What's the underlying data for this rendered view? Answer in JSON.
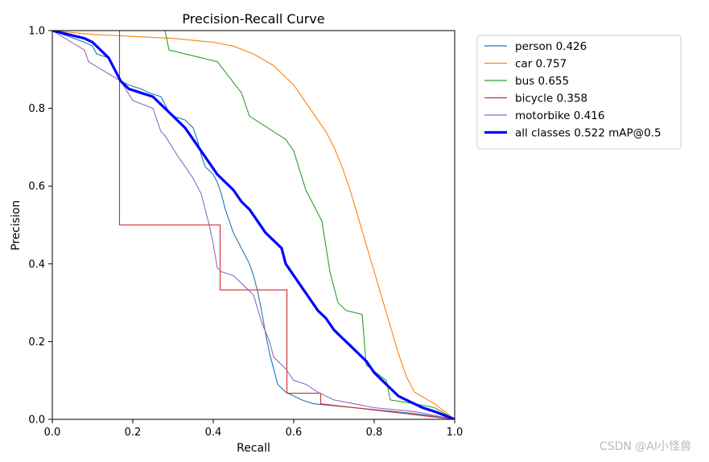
{
  "chart_data": {
    "type": "line",
    "title": "Precision-Recall Curve",
    "xlabel": "Recall",
    "ylabel": "Precision",
    "xlim": [
      0.0,
      1.0
    ],
    "ylim": [
      0.0,
      1.0
    ],
    "xticks": [
      "0.0",
      "0.2",
      "0.4",
      "0.6",
      "0.8",
      "1.0"
    ],
    "yticks": [
      "0.0",
      "0.2",
      "0.4",
      "0.6",
      "0.8",
      "1.0"
    ],
    "grid": false,
    "legend_position": "outside-right-top",
    "series": [
      {
        "name": "person 0.426",
        "color": "#1f77b4",
        "bold": false,
        "x": [
          0.0,
          0.08,
          0.1,
          0.11,
          0.14,
          0.17,
          0.19,
          0.22,
          0.24,
          0.27,
          0.28,
          0.29,
          0.3,
          0.33,
          0.35,
          0.36,
          0.37,
          0.38,
          0.4,
          0.41,
          0.42,
          0.43,
          0.44,
          0.45,
          0.46,
          0.47,
          0.48,
          0.49,
          0.5,
          0.51,
          0.52,
          0.53,
          0.54,
          0.55,
          0.56,
          0.58,
          0.6,
          0.62,
          0.65,
          0.7,
          0.75,
          0.8,
          0.85,
          0.9,
          1.0
        ],
        "y": [
          1.0,
          0.97,
          0.96,
          0.94,
          0.93,
          0.87,
          0.86,
          0.85,
          0.84,
          0.83,
          0.81,
          0.79,
          0.78,
          0.77,
          0.75,
          0.72,
          0.68,
          0.65,
          0.63,
          0.61,
          0.58,
          0.54,
          0.51,
          0.48,
          0.46,
          0.44,
          0.42,
          0.4,
          0.37,
          0.33,
          0.28,
          0.22,
          0.17,
          0.13,
          0.09,
          0.07,
          0.06,
          0.05,
          0.04,
          0.035,
          0.03,
          0.025,
          0.02,
          0.015,
          0.0
        ]
      },
      {
        "name": "car 0.757",
        "color": "#ff7f0e",
        "bold": false,
        "x": [
          0.0,
          0.1,
          0.2,
          0.3,
          0.4,
          0.45,
          0.5,
          0.55,
          0.58,
          0.6,
          0.62,
          0.64,
          0.66,
          0.68,
          0.7,
          0.72,
          0.74,
          0.76,
          0.78,
          0.8,
          0.82,
          0.84,
          0.86,
          0.88,
          0.9,
          0.95,
          1.0
        ],
        "y": [
          1.0,
          0.99,
          0.985,
          0.98,
          0.97,
          0.96,
          0.94,
          0.91,
          0.88,
          0.86,
          0.83,
          0.8,
          0.77,
          0.74,
          0.7,
          0.65,
          0.59,
          0.52,
          0.45,
          0.38,
          0.31,
          0.24,
          0.17,
          0.11,
          0.07,
          0.04,
          0.0
        ]
      },
      {
        "name": "bus 0.655",
        "color": "#2ca02c",
        "bold": false,
        "x": [
          0.0,
          0.28,
          0.29,
          0.41,
          0.47,
          0.49,
          0.58,
          0.6,
          0.63,
          0.67,
          0.69,
          0.71,
          0.72,
          0.73,
          0.77,
          0.78,
          0.83,
          0.84,
          0.9,
          0.95,
          1.0
        ],
        "y": [
          1.0,
          1.0,
          0.95,
          0.92,
          0.84,
          0.78,
          0.72,
          0.69,
          0.59,
          0.51,
          0.38,
          0.3,
          0.29,
          0.28,
          0.27,
          0.14,
          0.1,
          0.05,
          0.04,
          0.03,
          0.0
        ]
      },
      {
        "name": "bicycle 0.358",
        "color": "#d62728",
        "bold": false,
        "x": [
          0.0,
          0.167,
          0.167,
          0.417,
          0.417,
          0.583,
          0.583,
          0.667,
          0.667,
          1.0
        ],
        "y": [
          1.0,
          1.0,
          0.5,
          0.5,
          0.333,
          0.333,
          0.067,
          0.067,
          0.04,
          0.0
        ]
      },
      {
        "name": "motorbike 0.416",
        "color": "#9467bd",
        "bold": false,
        "x": [
          0.0,
          0.08,
          0.09,
          0.17,
          0.2,
          0.25,
          0.27,
          0.28,
          0.31,
          0.33,
          0.35,
          0.37,
          0.39,
          0.4,
          0.41,
          0.42,
          0.45,
          0.48,
          0.5,
          0.52,
          0.54,
          0.55,
          0.58,
          0.6,
          0.63,
          0.66,
          0.7,
          0.75,
          0.8,
          0.9,
          1.0
        ],
        "y": [
          1.0,
          0.95,
          0.92,
          0.87,
          0.82,
          0.8,
          0.74,
          0.73,
          0.68,
          0.65,
          0.62,
          0.58,
          0.5,
          0.45,
          0.39,
          0.38,
          0.37,
          0.34,
          0.32,
          0.25,
          0.2,
          0.16,
          0.13,
          0.1,
          0.09,
          0.07,
          0.05,
          0.04,
          0.03,
          0.02,
          0.0
        ]
      },
      {
        "name": "all classes 0.522 mAP@0.5",
        "color": "#0000ff",
        "bold": true,
        "x": [
          0.0,
          0.08,
          0.1,
          0.14,
          0.17,
          0.19,
          0.22,
          0.25,
          0.27,
          0.29,
          0.31,
          0.33,
          0.35,
          0.37,
          0.39,
          0.41,
          0.43,
          0.45,
          0.47,
          0.49,
          0.51,
          0.53,
          0.55,
          0.57,
          0.58,
          0.6,
          0.62,
          0.64,
          0.66,
          0.68,
          0.7,
          0.72,
          0.74,
          0.76,
          0.78,
          0.8,
          0.82,
          0.84,
          0.86,
          0.88,
          0.9,
          0.92,
          0.95,
          1.0
        ],
        "y": [
          1.0,
          0.98,
          0.97,
          0.93,
          0.87,
          0.85,
          0.84,
          0.83,
          0.81,
          0.79,
          0.77,
          0.75,
          0.72,
          0.69,
          0.66,
          0.63,
          0.61,
          0.59,
          0.56,
          0.54,
          0.51,
          0.48,
          0.46,
          0.44,
          0.4,
          0.37,
          0.34,
          0.31,
          0.28,
          0.26,
          0.23,
          0.21,
          0.19,
          0.17,
          0.15,
          0.12,
          0.1,
          0.08,
          0.06,
          0.05,
          0.04,
          0.03,
          0.02,
          0.0
        ]
      }
    ]
  },
  "watermark": "CSDN @AI小怪兽"
}
